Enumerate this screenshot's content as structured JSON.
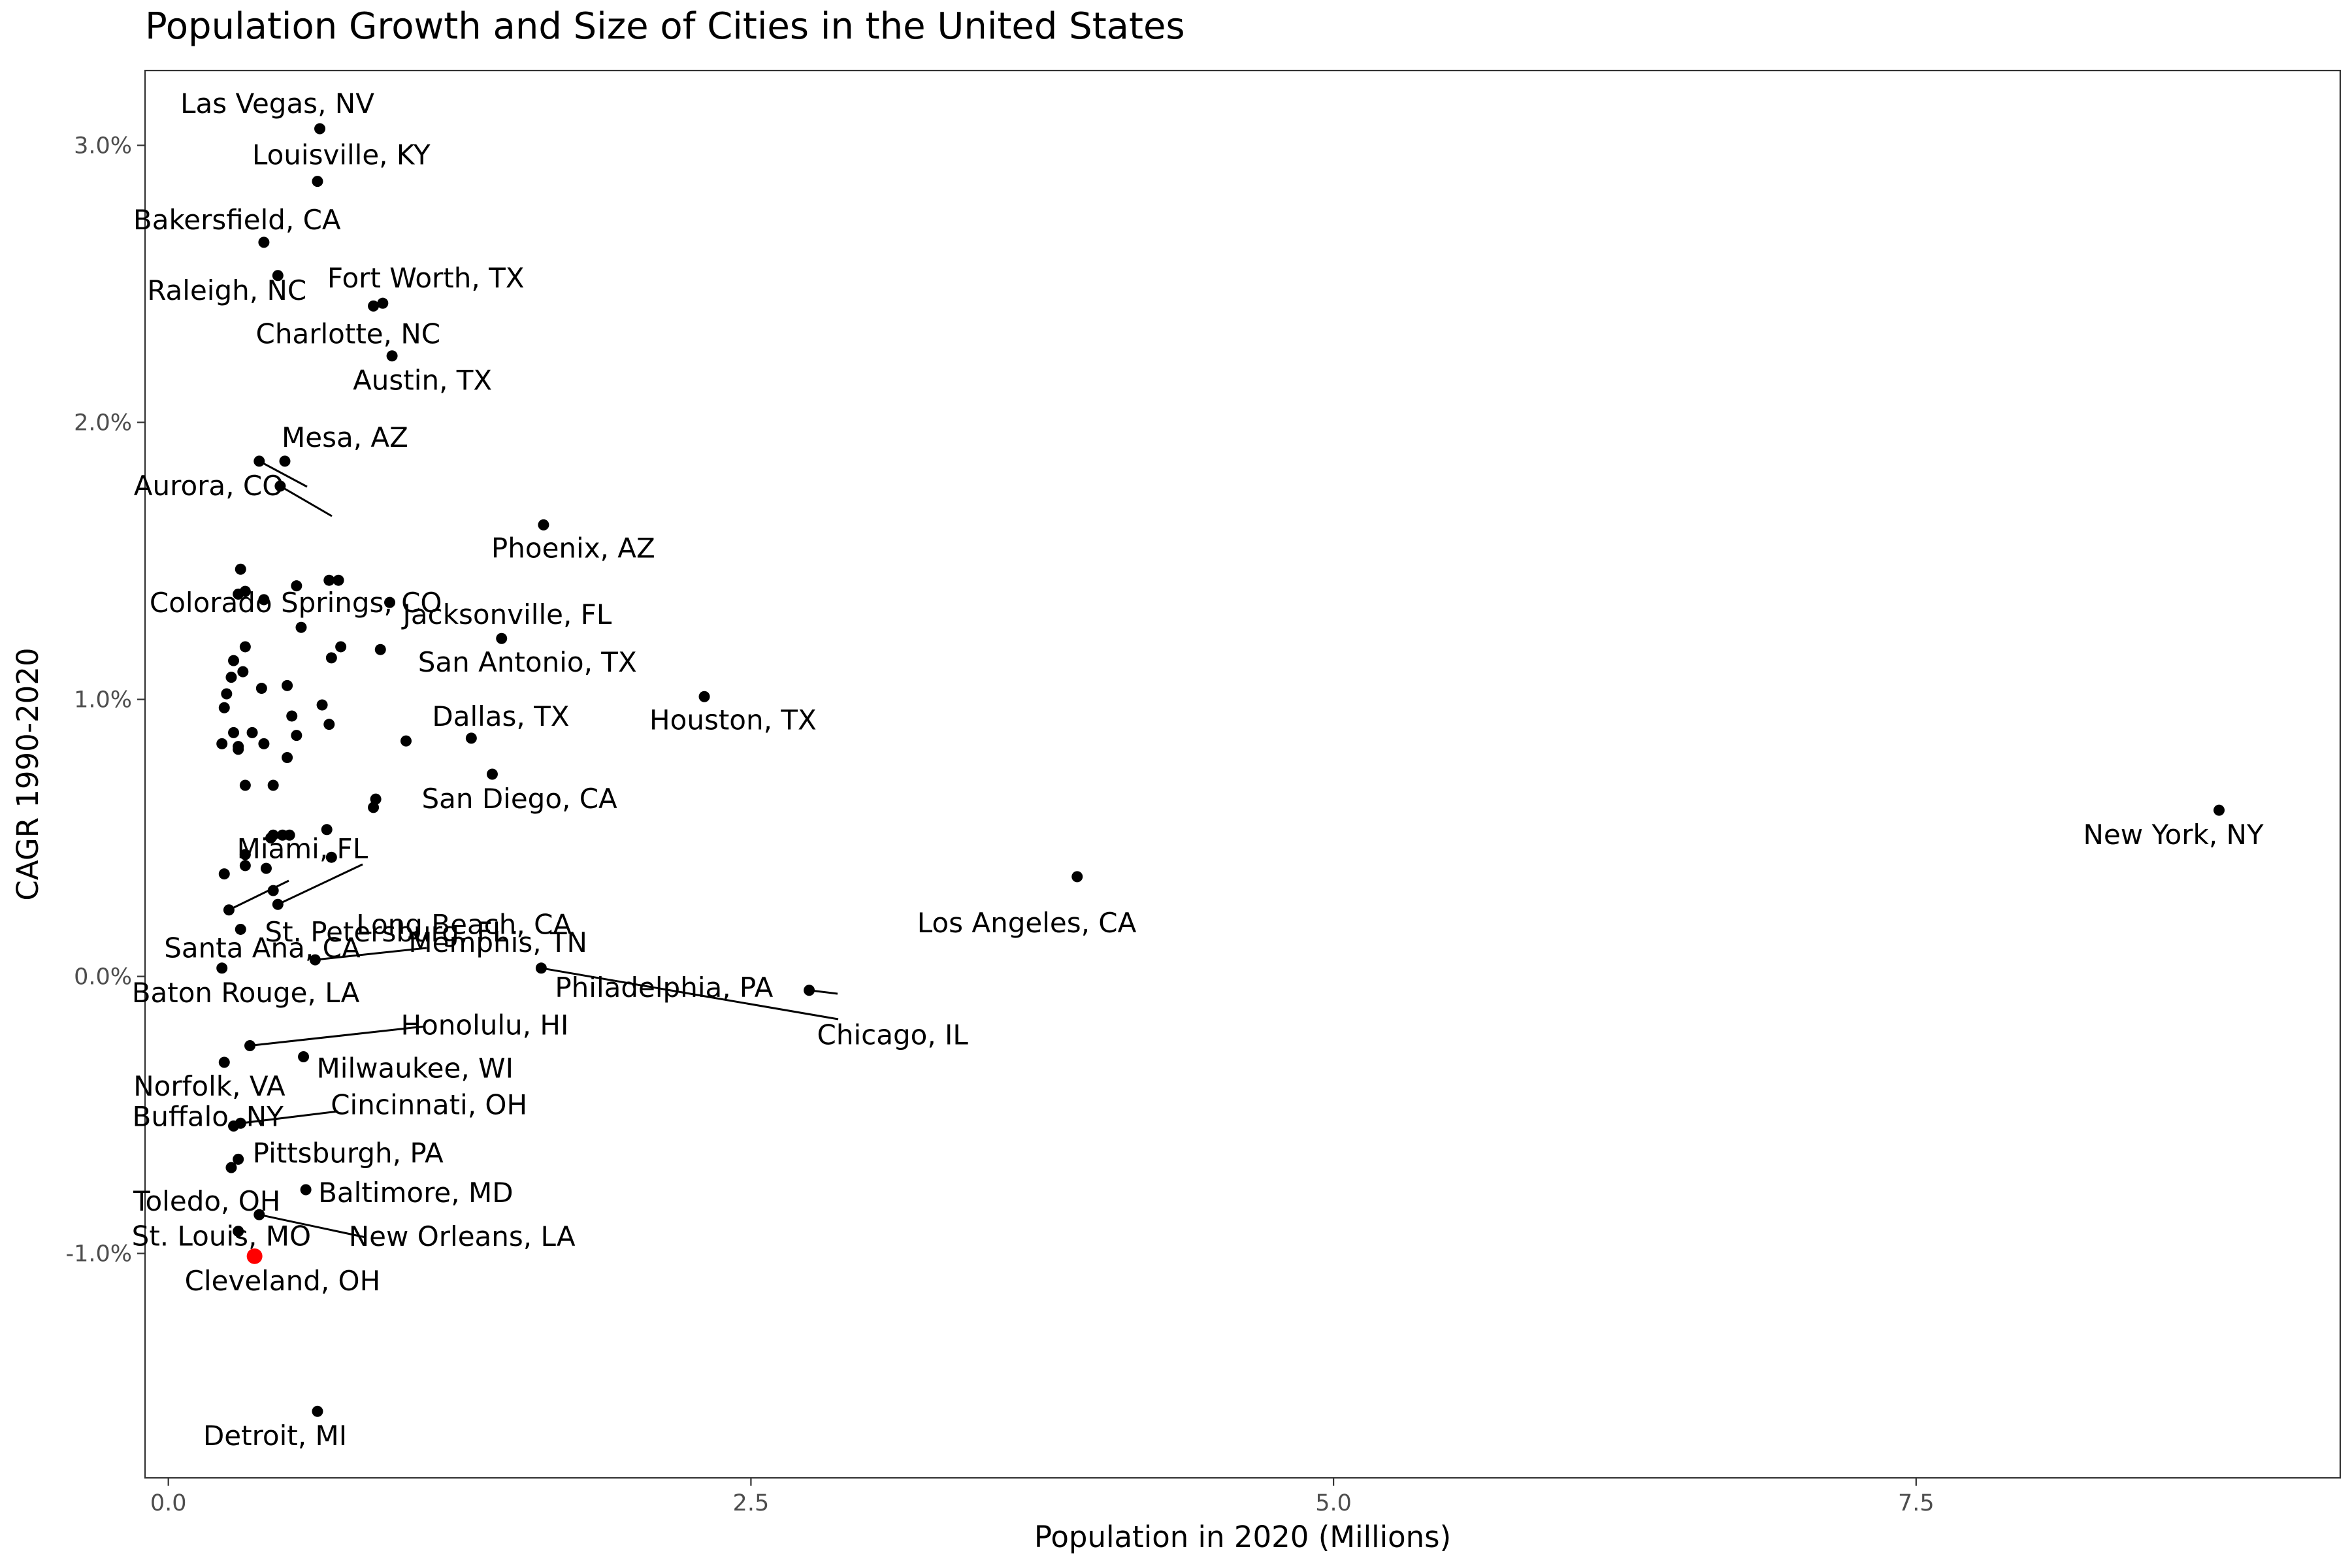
{
  "chart_data": {
    "type": "scatter",
    "title": "Population Growth and Size of Cities in the United States",
    "xlabel": "Population in 2020 (Millions)",
    "ylabel": "CAGR 1990-2020",
    "xlim": [
      -0.1,
      9.32
    ],
    "ylim": [
      -1.81,
      3.27
    ],
    "x_ticks": [
      0.0,
      2.5,
      5.0,
      7.5
    ],
    "x_tick_labels": [
      "0.0",
      "2.5",
      "5.0",
      "7.5"
    ],
    "y_ticks": [
      -1.0,
      0.0,
      1.0,
      2.0,
      3.0
    ],
    "y_tick_labels": [
      "-1.0%",
      "0.0%",
      "1.0%",
      "2.0%",
      "3.0%"
    ],
    "grid": false,
    "legend": "none",
    "point_color": "#000000",
    "highlight_color": "#ff0000",
    "highlighted": "Cleveland, OH",
    "labeled_points": [
      {
        "label": "Las Vegas, NV",
        "x": 0.65,
        "y": 3.06
      },
      {
        "label": "Louisville, KY",
        "x": 0.64,
        "y": 2.87
      },
      {
        "label": "Bakersfield, CA",
        "x": 0.41,
        "y": 2.65
      },
      {
        "label": "Raleigh, NC",
        "x": 0.47,
        "y": 2.53
      },
      {
        "label": "Fort Worth, TX",
        "x": 0.92,
        "y": 2.43
      },
      {
        "label": "Charlotte, NC",
        "x": 0.88,
        "y": 2.42
      },
      {
        "label": "Austin, TX",
        "x": 0.96,
        "y": 2.24
      },
      {
        "label": "Mesa, AZ",
        "x": 0.5,
        "y": 1.86
      },
      {
        "label": "Aurora, CO",
        "x": 0.39,
        "y": 1.86
      },
      {
        "label": "Colorado Springs, CO",
        "x": 0.48,
        "y": 1.77
      },
      {
        "label": "Phoenix, AZ",
        "x": 1.61,
        "y": 1.63
      },
      {
        "label": "Jacksonville, FL",
        "x": 0.95,
        "y": 1.35
      },
      {
        "label": "San Antonio, TX",
        "x": 1.43,
        "y": 1.22
      },
      {
        "label": "Houston, TX",
        "x": 2.3,
        "y": 1.01
      },
      {
        "label": "Dallas, TX",
        "x": 1.3,
        "y": 0.86
      },
      {
        "label": "San Diego, CA",
        "x": 1.39,
        "y": 0.73
      },
      {
        "label": "New York, NY",
        "x": 8.8,
        "y": 0.6
      },
      {
        "label": "Miami, FL",
        "x": 0.44,
        "y": 0.5
      },
      {
        "label": "Long Beach, CA",
        "x": 0.47,
        "y": 0.26
      },
      {
        "label": "St. Petersburg, FL",
        "x": 0.26,
        "y": 0.24
      },
      {
        "label": "Los Angeles, CA",
        "x": 3.9,
        "y": 0.36
      },
      {
        "label": "Santa Ana, CA",
        "x": 0.31,
        "y": 0.17
      },
      {
        "label": "Memphis, TN",
        "x": 0.63,
        "y": 0.06
      },
      {
        "label": "Baton Rouge, LA",
        "x": 0.23,
        "y": 0.03
      },
      {
        "label": "Philadelphia, PA",
        "x": 1.6,
        "y": 0.03
      },
      {
        "label": "Chicago, IL",
        "x": 2.75,
        "y": -0.05
      },
      {
        "label": "Honolulu, HI",
        "x": 0.35,
        "y": -0.25
      },
      {
        "label": "Norfolk, VA",
        "x": 0.24,
        "y": -0.31
      },
      {
        "label": "Milwaukee, WI",
        "x": 0.58,
        "y": -0.29
      },
      {
        "label": "Buffalo, NY",
        "x": 0.28,
        "y": -0.54
      },
      {
        "label": "Cincinnati, OH",
        "x": 0.31,
        "y": -0.53
      },
      {
        "label": "Pittsburgh, PA",
        "x": 0.3,
        "y": -0.66
      },
      {
        "label": "Toledo, OH",
        "x": 0.27,
        "y": -0.69
      },
      {
        "label": "Baltimore, MD",
        "x": 0.59,
        "y": -0.77
      },
      {
        "label": "New Orleans, LA",
        "x": 0.39,
        "y": -0.86
      },
      {
        "label": "St. Louis, MO",
        "x": 0.3,
        "y": -0.92
      },
      {
        "label": "Cleveland, OH",
        "x": 0.37,
        "y": -1.01
      },
      {
        "label": "Detroit, MI",
        "x": 0.64,
        "y": -1.57
      }
    ],
    "unlabeled_points": [
      {
        "x": 0.31,
        "y": 1.47
      },
      {
        "x": 0.33,
        "y": 1.39
      },
      {
        "x": 0.3,
        "y": 1.38
      },
      {
        "x": 0.41,
        "y": 1.36
      },
      {
        "x": 0.55,
        "y": 1.41
      },
      {
        "x": 0.69,
        "y": 1.43
      },
      {
        "x": 0.73,
        "y": 1.43
      },
      {
        "x": 0.57,
        "y": 1.26
      },
      {
        "x": 0.74,
        "y": 1.19
      },
      {
        "x": 0.33,
        "y": 1.19
      },
      {
        "x": 0.7,
        "y": 1.15
      },
      {
        "x": 0.91,
        "y": 1.18
      },
      {
        "x": 0.28,
        "y": 1.14
      },
      {
        "x": 0.32,
        "y": 1.1
      },
      {
        "x": 0.27,
        "y": 1.08
      },
      {
        "x": 0.4,
        "y": 1.04
      },
      {
        "x": 0.51,
        "y": 1.05
      },
      {
        "x": 0.25,
        "y": 1.02
      },
      {
        "x": 0.24,
        "y": 0.97
      },
      {
        "x": 0.66,
        "y": 0.98
      },
      {
        "x": 0.53,
        "y": 0.94
      },
      {
        "x": 0.69,
        "y": 0.91
      },
      {
        "x": 0.28,
        "y": 0.88
      },
      {
        "x": 0.36,
        "y": 0.88
      },
      {
        "x": 0.55,
        "y": 0.87
      },
      {
        "x": 0.23,
        "y": 0.84
      },
      {
        "x": 0.3,
        "y": 0.83
      },
      {
        "x": 0.3,
        "y": 0.82
      },
      {
        "x": 0.41,
        "y": 0.84
      },
      {
        "x": 1.02,
        "y": 0.85
      },
      {
        "x": 0.51,
        "y": 0.79
      },
      {
        "x": 0.33,
        "y": 0.69
      },
      {
        "x": 0.45,
        "y": 0.69
      },
      {
        "x": 0.89,
        "y": 0.64
      },
      {
        "x": 0.88,
        "y": 0.61
      },
      {
        "x": 0.68,
        "y": 0.53
      },
      {
        "x": 0.45,
        "y": 0.51
      },
      {
        "x": 0.49,
        "y": 0.51
      },
      {
        "x": 0.52,
        "y": 0.51
      },
      {
        "x": 0.33,
        "y": 0.44
      },
      {
        "x": 0.7,
        "y": 0.43
      },
      {
        "x": 0.33,
        "y": 0.4
      },
      {
        "x": 0.42,
        "y": 0.39
      },
      {
        "x": 0.24,
        "y": 0.37
      },
      {
        "x": 0.45,
        "y": 0.31
      }
    ]
  }
}
